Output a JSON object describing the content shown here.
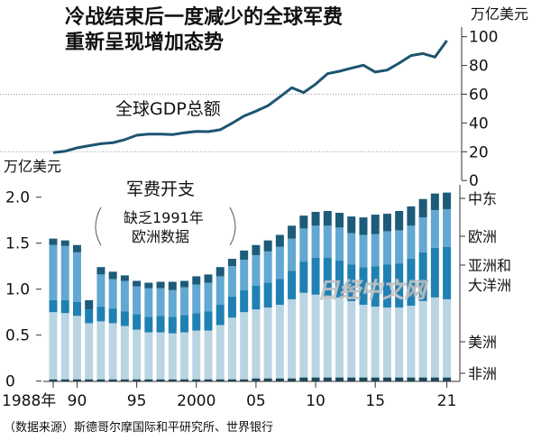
{
  "chart_data": [
    {
      "type": "line",
      "title": "冷战结束后一度减少的全球军费重新呈现增加态势",
      "title_lines": [
        "冷战结束后一度减少的全球军费",
        "重新呈现增加态势"
      ],
      "series_label": "全球GDP总额",
      "ylabel": "万亿美元",
      "ylim": [
        0,
        100
      ],
      "yticks": [
        "0",
        "20",
        "40",
        "60",
        "80",
        "100"
      ],
      "grid": "dotted at 20 and 60",
      "x": [
        1988,
        1989,
        1990,
        1991,
        1992,
        1993,
        1994,
        1995,
        1996,
        1997,
        1998,
        1999,
        2000,
        2001,
        2002,
        2003,
        2004,
        2005,
        2006,
        2007,
        2008,
        2009,
        2010,
        2011,
        2012,
        2013,
        2014,
        2015,
        2016,
        2017,
        2018,
        2019,
        2020,
        2021
      ],
      "values": [
        19.4,
        20.4,
        22.7,
        24.2,
        25.6,
        26.3,
        28.4,
        31.5,
        32.3,
        32.3,
        31.9,
        33.2,
        34.2,
        34.0,
        35.3,
        39.9,
        44.9,
        48.2,
        52.0,
        58.2,
        64.5,
        61.2,
        67.0,
        74.3,
        76.0,
        78.1,
        80.2,
        75.4,
        76.8,
        81.6,
        86.9,
        88.3,
        85.8,
        97.3
      ],
      "color": "#1d5470"
    },
    {
      "type": "bar",
      "stacked": true,
      "title": "军费开支",
      "annotation": [
        "缺乏1991年",
        "欧洲数据"
      ],
      "ylabel": "万亿美元",
      "ylim": [
        0,
        2.0
      ],
      "yticks": [
        "0",
        "0.5",
        "1.0",
        "1.5",
        "2.0"
      ],
      "xtick_labels": [
        {
          "year": 1988,
          "label": "1988年"
        },
        {
          "year": 1990,
          "label": "90"
        },
        {
          "year": 1995,
          "label": "95"
        },
        {
          "year": 2000,
          "label": "2000"
        },
        {
          "year": 2005,
          "label": "05"
        },
        {
          "year": 2010,
          "label": "10"
        },
        {
          "year": 2015,
          "label": "15"
        },
        {
          "year": 2021,
          "label": "21"
        }
      ],
      "legend_position": "right",
      "categories": [
        1988,
        1989,
        1990,
        1991,
        1992,
        1993,
        1994,
        1995,
        1996,
        1997,
        1998,
        1999,
        2000,
        2001,
        2002,
        2003,
        2004,
        2005,
        2006,
        2007,
        2008,
        2009,
        2010,
        2011,
        2012,
        2013,
        2014,
        2015,
        2016,
        2017,
        2018,
        2019,
        2020,
        2021
      ],
      "series": [
        {
          "name": "非洲",
          "legend_lines": [
            "非洲"
          ],
          "color": "#1b4a60",
          "values": [
            0.02,
            0.02,
            0.02,
            0.02,
            0.02,
            0.02,
            0.02,
            0.02,
            0.02,
            0.02,
            0.02,
            0.02,
            0.02,
            0.02,
            0.02,
            0.02,
            0.02,
            0.03,
            0.03,
            0.03,
            0.03,
            0.04,
            0.04,
            0.04,
            0.04,
            0.04,
            0.04,
            0.04,
            0.04,
            0.04,
            0.04,
            0.04,
            0.04,
            0.04
          ]
        },
        {
          "name": "美洲",
          "legend_lines": [
            "美洲"
          ],
          "color": "#b9d5e2",
          "values": [
            0.73,
            0.72,
            0.69,
            0.61,
            0.63,
            0.61,
            0.58,
            0.54,
            0.51,
            0.51,
            0.5,
            0.51,
            0.53,
            0.53,
            0.59,
            0.67,
            0.73,
            0.75,
            0.77,
            0.8,
            0.86,
            0.92,
            0.9,
            0.88,
            0.87,
            0.83,
            0.79,
            0.77,
            0.76,
            0.76,
            0.78,
            0.83,
            0.87,
            0.85
          ]
        },
        {
          "name": "亚洲和大洋洲",
          "legend_lines": [
            "亚洲和",
            "大洋洲"
          ],
          "color": "#1f80b3",
          "values": [
            0.13,
            0.14,
            0.15,
            0.15,
            0.16,
            0.16,
            0.16,
            0.17,
            0.17,
            0.18,
            0.18,
            0.19,
            0.19,
            0.21,
            0.22,
            0.23,
            0.24,
            0.26,
            0.27,
            0.28,
            0.31,
            0.34,
            0.4,
            0.42,
            0.4,
            0.4,
            0.41,
            0.44,
            0.47,
            0.48,
            0.51,
            0.53,
            0.54,
            0.57
          ]
        },
        {
          "name": "欧洲",
          "legend_lines": [
            "欧洲"
          ],
          "color": "#62a8d2",
          "values": [
            0.6,
            0.59,
            0.54,
            0.0,
            0.35,
            0.32,
            0.33,
            0.3,
            0.31,
            0.3,
            0.29,
            0.3,
            0.31,
            0.31,
            0.31,
            0.33,
            0.33,
            0.33,
            0.34,
            0.35,
            0.35,
            0.36,
            0.35,
            0.35,
            0.36,
            0.34,
            0.35,
            0.35,
            0.36,
            0.36,
            0.36,
            0.38,
            0.41,
            0.41
          ]
        },
        {
          "name": "中东",
          "legend_lines": [
            "中东"
          ],
          "color": "#1c5b79",
          "values": [
            0.07,
            0.06,
            0.08,
            0.1,
            0.08,
            0.08,
            0.06,
            0.06,
            0.06,
            0.07,
            0.09,
            0.07,
            0.09,
            0.09,
            0.1,
            0.08,
            0.1,
            0.11,
            0.12,
            0.13,
            0.14,
            0.14,
            0.15,
            0.16,
            0.16,
            0.18,
            0.19,
            0.21,
            0.19,
            0.21,
            0.21,
            0.2,
            0.18,
            0.18
          ]
        }
      ]
    }
  ],
  "source": "（数据来源）斯德哥尔摩国际和平研究所、世界银行",
  "watermark": "日经中文网"
}
